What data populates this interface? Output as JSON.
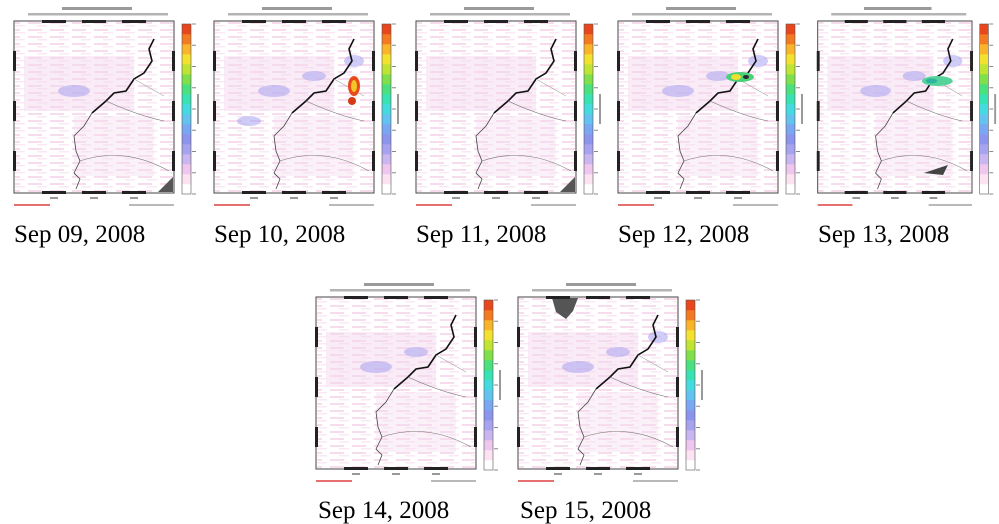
{
  "colorbar": {
    "colors": [
      "#ffffff",
      "#fde3f2",
      "#efc7ee",
      "#c9b6f0",
      "#a7a3ef",
      "#8c95ee",
      "#79a7f2",
      "#62c2f0",
      "#44dbe0",
      "#37e3b3",
      "#4ae07d",
      "#7fe04c",
      "#bfe433",
      "#f3e130",
      "#f9b42a",
      "#f47a22",
      "#e8461c"
    ]
  },
  "panels": [
    {
      "caption": "Sep 09, 2008",
      "blue_blobs": 1,
      "storm": "none",
      "grey_patch": "bottom-right"
    },
    {
      "caption": "Sep 10, 2008",
      "blue_blobs": 4,
      "storm": "red",
      "grey_patch": "none"
    },
    {
      "caption": "Sep 11, 2008",
      "blue_blobs": 0,
      "storm": "none",
      "grey_patch": "bottom-right"
    },
    {
      "caption": "Sep 12, 2008",
      "blue_blobs": 3,
      "storm": "green-yellow",
      "grey_patch": "none"
    },
    {
      "caption": "Sep 13, 2008",
      "blue_blobs": 3,
      "storm": "green",
      "grey_patch": "bottom-right-small"
    },
    {
      "caption": "Sep 14, 2008",
      "blue_blobs": 2,
      "storm": "none",
      "grey_patch": "none"
    },
    {
      "caption": "Sep 15, 2008",
      "blue_blobs": 3,
      "storm": "none",
      "grey_patch": "top-left"
    }
  ]
}
